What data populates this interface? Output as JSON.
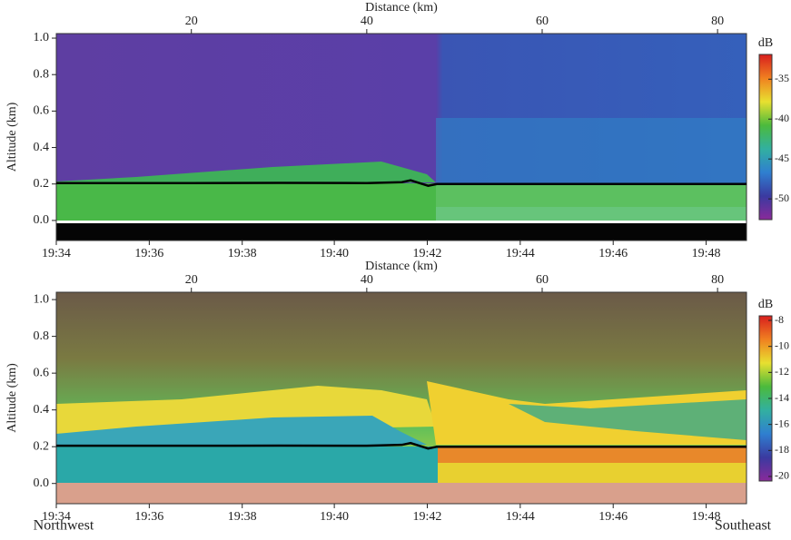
{
  "chart_data": [
    {
      "type": "heatmap",
      "x_label": "Distance (km)",
      "y_label": "Altitude (km)",
      "xlim": [
        4.6,
        83.3
      ],
      "xticks": [
        20,
        40,
        60,
        80
      ],
      "time_ticks": [
        {
          "value": 4.6,
          "label": "19:34"
        },
        {
          "value": 15.2,
          "label": "19:36"
        },
        {
          "value": 25.8,
          "label": "19:38"
        },
        {
          "value": 36.3,
          "label": "19:40"
        },
        {
          "value": 46.9,
          "label": "19:42"
        },
        {
          "value": 57.5,
          "label": "19:44"
        },
        {
          "value": 68.1,
          "label": "19:46"
        },
        {
          "value": 78.7,
          "label": "19:48"
        }
      ],
      "ylim": [
        -0.11,
        1.025
      ],
      "yticks": [
        0.0,
        0.2,
        0.4,
        0.6,
        0.8,
        1.0
      ],
      "colorbar": {
        "label": "dB",
        "lim": [
          -52.6,
          -31.9
        ],
        "ticks": [
          -35,
          -40,
          -45,
          -50
        ],
        "colors": [
          "#8a2a9a",
          "#3a3aa0",
          "#2f7fd0",
          "#32b0a0",
          "#4cba3c",
          "#e8e030",
          "#f08020",
          "#d81e1e"
        ]
      },
      "series": [
        {
          "color": "#000000",
          "x": [
            4.6,
            20,
            30,
            40,
            44,
            45,
            46,
            47,
            48,
            60,
            70,
            83.3
          ],
          "values": [
            0.205,
            0.205,
            0.206,
            0.205,
            0.21,
            0.22,
            0.205,
            0.19,
            0.2,
            0.2,
            0.2,
            0.2
          ]
        }
      ]
    },
    {
      "type": "heatmap",
      "x_label": "Distance (km)",
      "y_label": "Altitude (km)",
      "xlim": [
        4.6,
        83.3
      ],
      "xticks": [
        20,
        40,
        60,
        80
      ],
      "time_ticks": [
        {
          "value": 4.6,
          "label": "19:34"
        },
        {
          "value": 15.2,
          "label": "19:36"
        },
        {
          "value": 25.8,
          "label": "19:38"
        },
        {
          "value": 36.3,
          "label": "19:40"
        },
        {
          "value": 46.9,
          "label": "19:42"
        },
        {
          "value": 57.5,
          "label": "19:44"
        },
        {
          "value": 68.1,
          "label": "19:46"
        },
        {
          "value": 78.7,
          "label": "19:48"
        }
      ],
      "ylim": [
        -0.11,
        1.04
      ],
      "yticks": [
        -0.0,
        0.2,
        0.4,
        0.6,
        0.8,
        1.0
      ],
      "colorbar": {
        "label": "dB",
        "lim": [
          -20.35,
          -7.65
        ],
        "ticks": [
          -8,
          -10,
          -12,
          -14,
          -16,
          -18,
          -20
        ],
        "colors": [
          "#8a2a9a",
          "#3a3aa0",
          "#2f7fd0",
          "#32b0a0",
          "#4cba3c",
          "#e8e030",
          "#f08020",
          "#d81e1e"
        ]
      },
      "series": [
        {
          "color": "#000000",
          "x": [
            4.6,
            20,
            30,
            40,
            44,
            45,
            46,
            47,
            48,
            60,
            70,
            83.3
          ],
          "values": [
            0.205,
            0.205,
            0.206,
            0.205,
            0.21,
            0.22,
            0.205,
            0.19,
            0.2,
            0.2,
            0.2,
            0.2
          ]
        }
      ]
    }
  ],
  "footer": {
    "left": "Northwest",
    "right": "Southeast"
  }
}
